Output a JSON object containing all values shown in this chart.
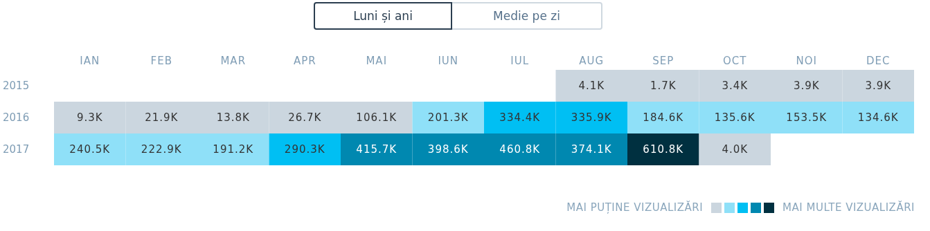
{
  "chart_data": {
    "type": "heatmap",
    "categories": [
      "IAN",
      "FEB",
      "MAR",
      "APR",
      "MAI",
      "IUN",
      "IUL",
      "AUG",
      "SEP",
      "OCT",
      "NOI",
      "DEC"
    ],
    "y_categories": [
      "2015",
      "2016",
      "2017"
    ],
    "cells": [
      [
        null,
        null,
        null,
        null,
        null,
        null,
        null,
        4.1,
        1.7,
        3.4,
        3.9,
        3.9
      ],
      [
        9.3,
        21.9,
        13.8,
        26.7,
        106.1,
        201.3,
        334.4,
        335.9,
        184.6,
        135.6,
        153.5,
        134.6
      ],
      [
        240.5,
        222.9,
        191.2,
        290.3,
        415.7,
        398.6,
        460.8,
        374.1,
        610.8,
        4.0,
        null,
        null
      ]
    ],
    "cell_labels": [
      [
        null,
        null,
        null,
        null,
        null,
        null,
        null,
        "4.1K",
        "1.7K",
        "3.4K",
        "3.9K",
        "3.9K"
      ],
      [
        "9.3K",
        "21.9K",
        "13.8K",
        "26.7K",
        "106.1K",
        "201.3K",
        "334.4K",
        "335.9K",
        "184.6K",
        "135.6K",
        "153.5K",
        "134.6K"
      ],
      [
        "240.5K",
        "222.9K",
        "191.2K",
        "290.3K",
        "415.7K",
        "398.6K",
        "460.8K",
        "374.1K",
        "610.8K",
        "4.0K",
        null,
        null
      ]
    ],
    "colors": [
      "#cbd6df",
      "#8fe0f8",
      "#00bff3",
      "#0088b0",
      "#003040"
    ],
    "annotations": [
      "Luni și ani",
      "Medie pe zi",
      "MAI PUȚINE VIZUALIZĂRI",
      "MAI MULTE VIZUALIZĂRI"
    ]
  }
}
